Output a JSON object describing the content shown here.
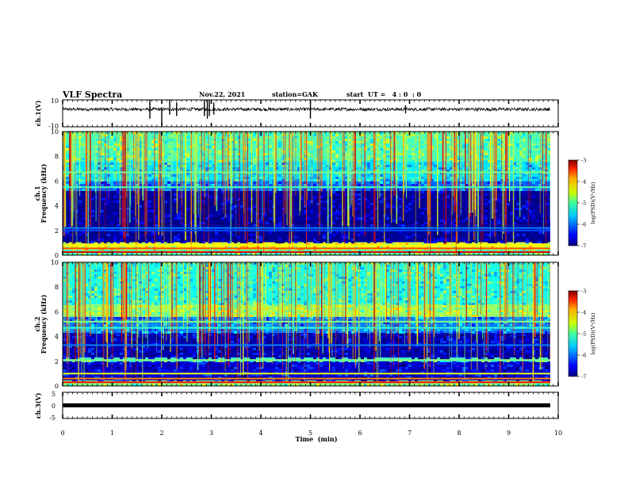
{
  "header": {
    "title": "VLF Spectra",
    "date": "Nov.22, 2021",
    "station": "station=GAK",
    "start": "start  UT =   4 : 0  : 0"
  },
  "chart_data": [
    {
      "type": "line",
      "name": "ch1-waveform",
      "ylabel": "ch.1(V)",
      "ylim": [
        -10,
        10
      ],
      "ytick_labels": [
        "10",
        "-10"
      ],
      "xlim": [
        0,
        10
      ],
      "baseline": 3,
      "noise_amplitude": 1.2,
      "spikes": [
        {
          "t": 1.76,
          "min": -4,
          "max": 10
        },
        {
          "t": 2.0,
          "min": -8,
          "max": 4
        },
        {
          "t": 2.16,
          "min": -1,
          "max": 10
        },
        {
          "t": 2.3,
          "min": -2,
          "max": 8
        },
        {
          "t": 2.86,
          "min": -2,
          "max": 10
        },
        {
          "t": 2.92,
          "min": -4,
          "max": 10
        },
        {
          "t": 2.96,
          "min": -2,
          "max": 10
        },
        {
          "t": 3.05,
          "min": -1,
          "max": 8
        },
        {
          "t": 5.0,
          "min": -4,
          "max": 7
        },
        {
          "t": 6.92,
          "min": 0,
          "max": 6
        }
      ]
    },
    {
      "type": "heatmap",
      "name": "ch1-spectrogram",
      "ylabel_lines": [
        "ch.1",
        "Frequency (kHz)"
      ],
      "xlim": [
        0,
        10
      ],
      "ylim": [
        0,
        10
      ],
      "ytick_labels": [
        "0",
        "2",
        "4",
        "6",
        "8",
        "10"
      ],
      "value_range": [
        -7,
        -3
      ],
      "colorbar": {
        "label": "log(PSD)(V²/Hz)",
        "tick_labels": [
          "-3",
          "-4",
          "-5",
          "-6",
          "-7"
        ]
      },
      "layers_khz": [
        {
          "from": 0.0,
          "to": 0.45,
          "level": -5.2
        },
        {
          "from": 0.45,
          "to": 1.05,
          "level": -4.6
        },
        {
          "from": 1.05,
          "to": 5.2,
          "level": -6.9
        },
        {
          "from": 5.2,
          "to": 6.0,
          "level": -6.1
        },
        {
          "from": 6.0,
          "to": 7.6,
          "level": -5.6
        },
        {
          "from": 7.6,
          "to": 10.0,
          "level": -5.2
        }
      ],
      "lines_khz": [
        {
          "f": 0.25,
          "level": -3.4
        },
        {
          "f": 0.55,
          "level": -3.8
        },
        {
          "f": 0.8,
          "level": -4.5
        },
        {
          "f": 2.0,
          "level": -6.2
        },
        {
          "f": 2.2,
          "level": -6.0
        },
        {
          "f": 5.5,
          "level": -5.2
        },
        {
          "f": 6.7,
          "level": -5.0
        }
      ]
    },
    {
      "type": "heatmap",
      "name": "ch2-spectrogram",
      "ylabel_lines": [
        "ch.2",
        "Frequency (kHz)"
      ],
      "xlim": [
        0,
        10
      ],
      "ylim": [
        0,
        10
      ],
      "ytick_labels": [
        "0",
        "2",
        "4",
        "6",
        "8",
        "10"
      ],
      "value_range": [
        -7,
        -3
      ],
      "colorbar": {
        "label": "log(PSD)(V²/Hz)",
        "tick_labels": [
          "-3",
          "-4",
          "-5",
          "-6",
          "-7"
        ]
      },
      "layers_khz": [
        {
          "from": 0.0,
          "to": 0.45,
          "level": -5.0
        },
        {
          "from": 0.45,
          "to": 2.0,
          "level": -6.7
        },
        {
          "from": 2.0,
          "to": 2.3,
          "level": -5.3
        },
        {
          "from": 2.3,
          "to": 4.3,
          "level": -6.8
        },
        {
          "from": 4.3,
          "to": 5.6,
          "level": -6.0
        },
        {
          "from": 5.6,
          "to": 6.6,
          "level": -4.9
        },
        {
          "from": 6.6,
          "to": 10.0,
          "level": -5.4
        }
      ],
      "lines_khz": [
        {
          "f": 0.3,
          "level": -3.5
        },
        {
          "f": 0.6,
          "level": -4.0
        },
        {
          "f": 1.0,
          "level": -4.6
        },
        {
          "f": 2.1,
          "level": -5.0
        },
        {
          "f": 3.3,
          "level": -6.0
        },
        {
          "f": 4.7,
          "level": -5.3
        },
        {
          "f": 5.2,
          "level": -5.0
        }
      ]
    },
    {
      "type": "line",
      "name": "ch3-waveform",
      "ylabel": "ch.3(V)",
      "ylim": [
        -5,
        5
      ],
      "ytick_labels": [
        "5",
        "0",
        "-5"
      ],
      "xlim": [
        0,
        10
      ],
      "constant_value": 0,
      "xlabel": "Time  (min)",
      "xtick_labels": [
        "0",
        "1",
        "2",
        "3",
        "4",
        "5",
        "6",
        "7",
        "8",
        "9",
        "10"
      ]
    }
  ]
}
